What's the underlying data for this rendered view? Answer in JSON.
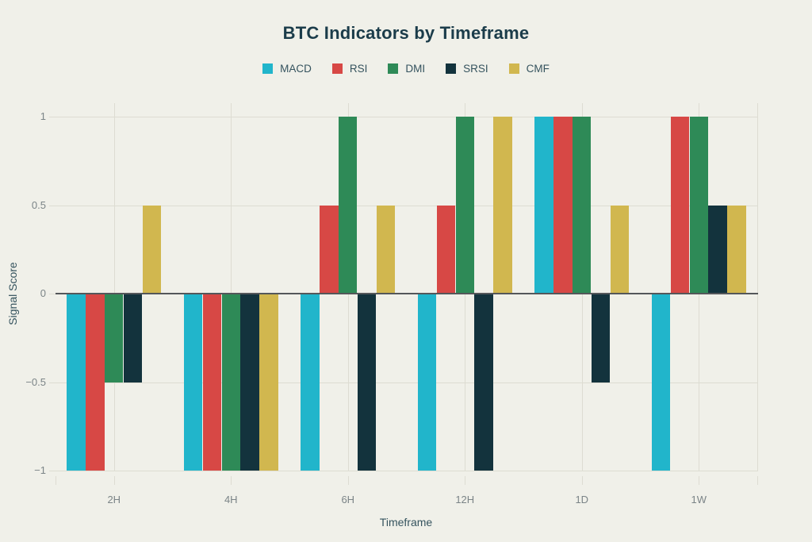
{
  "title": "BTC Indicators by Timeframe",
  "axes": {
    "y_label": "Signal Score",
    "x_label": "Timeframe",
    "y_tick_labels": [
      "1",
      "0.5",
      "0",
      "−0.5",
      "−1"
    ]
  },
  "colors": {
    "background": "#f0f0e9",
    "grid": "#dddcd2",
    "zero_line": "#54575a",
    "title_text": "#1b3c4a",
    "axis_title_text": "#35535e",
    "tick_text": "#7b8487"
  },
  "chart_data": {
    "type": "bar",
    "title": "BTC Indicators by Timeframe",
    "xlabel": "Timeframe",
    "ylabel": "Signal Score",
    "categories": [
      "2H",
      "4H",
      "6H",
      "12H",
      "1D",
      "1W"
    ],
    "series": [
      {
        "name": "MACD",
        "color": "#21b5cb",
        "values": [
          -1,
          -1,
          -1,
          -1,
          1,
          -1
        ]
      },
      {
        "name": "RSI",
        "color": "#d74845",
        "values": [
          -1,
          -1,
          0.5,
          0.5,
          1,
          1
        ]
      },
      {
        "name": "DMI",
        "color": "#2e8a57",
        "values": [
          -0.5,
          -1,
          1,
          1,
          1,
          1
        ]
      },
      {
        "name": "SRSI",
        "color": "#13333d",
        "values": [
          -0.5,
          -1,
          -1,
          -1,
          -0.5,
          0.5
        ]
      },
      {
        "name": "CMF",
        "color": "#d1b74f",
        "values": [
          0.5,
          -1,
          0.5,
          1,
          0.5,
          0.5
        ]
      }
    ],
    "ylim": [
      -1,
      1
    ],
    "y_ticks": [
      1,
      0.5,
      0,
      -0.5,
      -1
    ],
    "grid": true,
    "legend_position": "top"
  }
}
